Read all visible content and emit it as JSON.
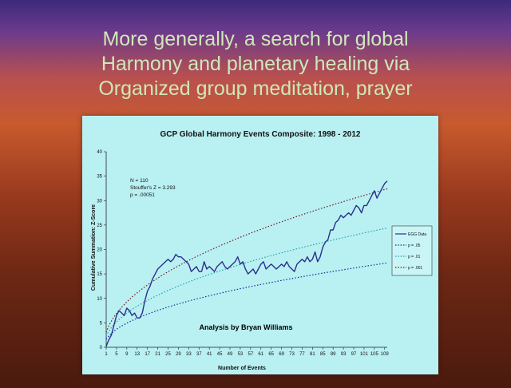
{
  "slide": {
    "heading_lines": [
      "More generally, a search for global",
      "Harmony and planetary healing via",
      "Organized group meditation, prayer"
    ]
  },
  "chart_data": {
    "type": "line",
    "title": "GCP Global Harmony Events Composite: 1998 - 2012",
    "xlabel": "Number of Events",
    "ylabel": "Cumulative Summation: Z-Score",
    "xlim": [
      1,
      110
    ],
    "ylim": [
      0,
      40
    ],
    "yticks": [
      0,
      5,
      10,
      15,
      20,
      25,
      30,
      35,
      40
    ],
    "xticks": [
      1,
      5,
      9,
      13,
      17,
      21,
      25,
      29,
      33,
      37,
      41,
      45,
      49,
      53,
      57,
      61,
      65,
      69,
      73,
      77,
      81,
      85,
      89,
      93,
      97,
      101,
      105,
      109
    ],
    "grid": false,
    "legend_position": "right",
    "annotations": {
      "n": "N = 110",
      "stouffer": "Stouffer's Z = 3.293",
      "p": "p = .00051",
      "credit": "Analysis by Bryan Williams"
    },
    "series": [
      {
        "name": "EGG Data",
        "style": "solid",
        "color": "#2b2f8c",
        "x": [
          1,
          2,
          3,
          4,
          5,
          6,
          7,
          8,
          9,
          10,
          11,
          12,
          13,
          14,
          15,
          16,
          17,
          18,
          19,
          20,
          21,
          22,
          23,
          24,
          25,
          26,
          27,
          28,
          29,
          30,
          31,
          32,
          33,
          34,
          35,
          36,
          37,
          38,
          39,
          40,
          41,
          42,
          43,
          44,
          45,
          46,
          47,
          48,
          49,
          50,
          51,
          52,
          53,
          54,
          55,
          56,
          57,
          58,
          59,
          60,
          61,
          62,
          63,
          64,
          65,
          66,
          67,
          68,
          69,
          70,
          71,
          72,
          73,
          74,
          75,
          76,
          77,
          78,
          79,
          80,
          81,
          82,
          83,
          84,
          85,
          86,
          87,
          88,
          89,
          90,
          91,
          92,
          93,
          94,
          95,
          96,
          97,
          98,
          99,
          100,
          101,
          102,
          103,
          104,
          105,
          106,
          107,
          108,
          109,
          110
        ],
        "values": [
          0.2,
          1.5,
          2.5,
          4.5,
          6.5,
          7.5,
          7.0,
          6.5,
          8.0,
          7.5,
          6.5,
          7.0,
          6.0,
          6.0,
          7.0,
          9.5,
          11.5,
          12.5,
          14.0,
          15.0,
          16.0,
          16.5,
          17.0,
          17.5,
          18.0,
          17.5,
          18.0,
          19.0,
          18.5,
          18.5,
          18.0,
          17.5,
          17.0,
          15.5,
          16.0,
          16.5,
          15.5,
          15.5,
          17.5,
          16.0,
          16.5,
          16.0,
          15.5,
          16.5,
          17.0,
          17.5,
          16.5,
          16.0,
          16.5,
          17.0,
          17.5,
          18.5,
          17.0,
          17.5,
          16.0,
          15.0,
          15.5,
          16.0,
          15.0,
          16.0,
          17.0,
          17.5,
          16.0,
          16.5,
          17.0,
          16.5,
          16.0,
          16.5,
          17.0,
          16.5,
          17.5,
          16.5,
          16.0,
          15.5,
          17.0,
          17.5,
          18.0,
          17.5,
          18.5,
          17.5,
          18.0,
          19.5,
          17.5,
          18.5,
          20.5,
          21.5,
          22.0,
          24.0,
          24.0,
          25.5,
          26.0,
          27.0,
          26.5,
          27.0,
          27.5,
          27.0,
          28.0,
          29.0,
          28.5,
          27.5,
          29.0,
          29.0,
          30.0,
          31.0,
          32.0,
          30.5,
          31.5,
          32.5,
          33.5,
          34.0
        ]
      },
      {
        "name": "p = .05",
        "style": "dotted",
        "color": "#1a2a9a",
        "multiplier": 1.645
      },
      {
        "name": "p = .01",
        "style": "dotted",
        "color": "#1fa3b0",
        "multiplier": 2.326
      },
      {
        "name": "p = .001",
        "style": "dotted",
        "color": "#6b1a1a",
        "multiplier": 3.09
      }
    ]
  }
}
